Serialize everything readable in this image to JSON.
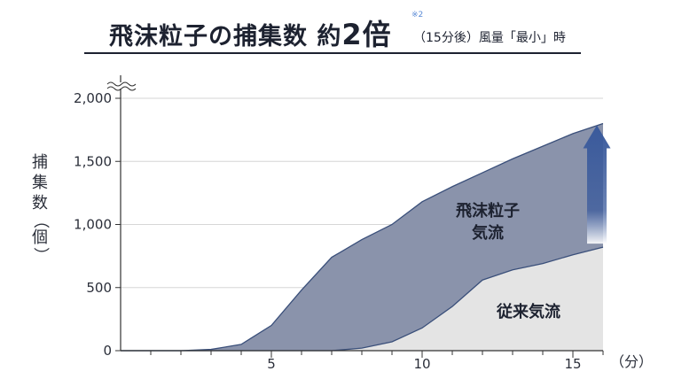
{
  "header": {
    "title_main": "飛沫粒子の捕集数 約",
    "title_big": "2倍",
    "title_note": "※2",
    "title_sub": "（15分後）風量「最小」時"
  },
  "chart_data": {
    "type": "area",
    "ylabel_chars": [
      "捕",
      "集",
      "数"
    ],
    "ylabel_paren": [
      "（",
      "個",
      "）"
    ],
    "x_unit": "（分）",
    "ylim": [
      0,
      2000
    ],
    "xlim": [
      0,
      16
    ],
    "y_ticks": [
      0,
      500,
      1000,
      1500,
      2000
    ],
    "y_tick_labels": [
      "0",
      "500",
      "1,000",
      "1,500",
      "2,000"
    ],
    "x_ticks": [
      5,
      10,
      15
    ],
    "x_tick_labels": [
      "5",
      "10",
      "15"
    ],
    "grid": true,
    "series": [
      {
        "name": "飛沫粒子気流",
        "label_lines": [
          "飛沫粒子",
          "気流"
        ],
        "color": "#8a93ab",
        "x": [
          0,
          1,
          2,
          3,
          4,
          5,
          6,
          7,
          8,
          9,
          10,
          11,
          12,
          13,
          14,
          15,
          16
        ],
        "y": [
          0,
          0,
          0,
          10,
          50,
          200,
          480,
          740,
          880,
          1000,
          1180,
          1300,
          1410,
          1520,
          1620,
          1720,
          1800
        ]
      },
      {
        "name": "従来気流",
        "label_lines": [
          "従来気流"
        ],
        "color": "#e4e4e4",
        "x": [
          0,
          1,
          2,
          3,
          4,
          5,
          6,
          7,
          8,
          9,
          10,
          11,
          12,
          13,
          14,
          15,
          16
        ],
        "y": [
          0,
          0,
          0,
          0,
          0,
          0,
          0,
          0,
          20,
          70,
          180,
          350,
          560,
          640,
          690,
          760,
          820
        ]
      }
    ],
    "arrow_color": "#3a5a9c"
  }
}
